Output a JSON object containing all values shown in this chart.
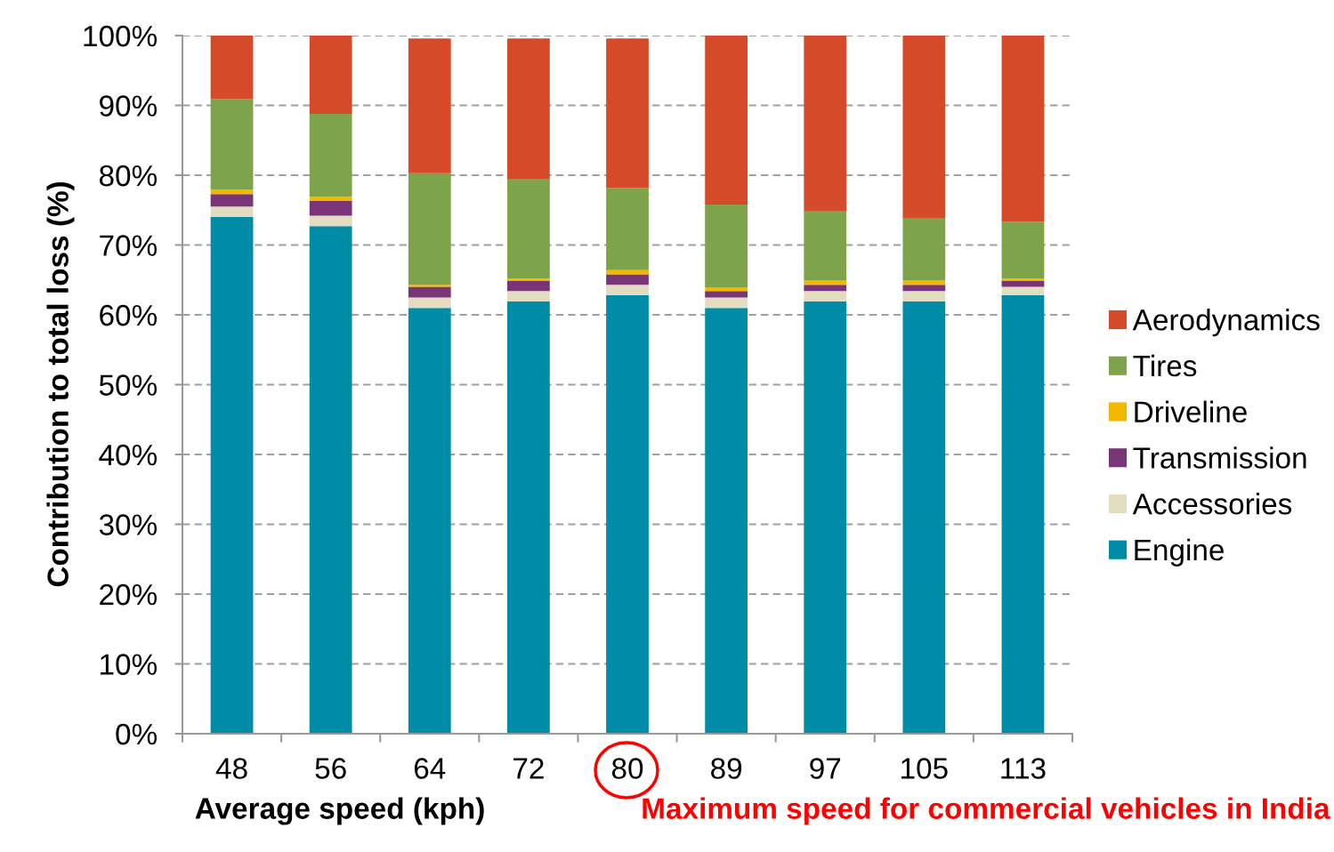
{
  "chart_data": {
    "type": "bar",
    "stacked": true,
    "xlabel": "Average speed (kph)",
    "ylabel": "Contribution to total loss (%)",
    "categories": [
      "48",
      "56",
      "64",
      "72",
      "80",
      "89",
      "97",
      "105",
      "113"
    ],
    "series": [
      {
        "name": "Engine",
        "color": "#008ba6",
        "values": [
          74.0,
          72.7,
          61.0,
          61.9,
          62.8,
          61.0,
          61.9,
          61.9,
          62.8
        ]
      },
      {
        "name": "Accessories",
        "color": "#e2dcc1",
        "values": [
          1.5,
          1.5,
          1.5,
          1.5,
          1.5,
          1.5,
          1.5,
          1.5,
          1.2
        ]
      },
      {
        "name": "Transmission",
        "color": "#7a3578",
        "values": [
          1.8,
          2.1,
          1.5,
          1.5,
          1.5,
          0.9,
          0.9,
          0.9,
          0.9
        ]
      },
      {
        "name": "Driveline",
        "color": "#f5b800",
        "values": [
          0.6,
          0.6,
          0.3,
          0.3,
          0.6,
          0.5,
          0.6,
          0.6,
          0.3
        ]
      },
      {
        "name": "Tires",
        "color": "#7da34b",
        "values": [
          13.0,
          11.9,
          16.0,
          14.2,
          11.8,
          11.9,
          10.0,
          9.0,
          8.1
        ]
      },
      {
        "name": "Aerodynamics",
        "color": "#d54b29",
        "values": [
          9.1,
          11.2,
          19.3,
          20.2,
          21.4,
          24.2,
          25.1,
          26.1,
          26.7
        ]
      }
    ],
    "ylim": [
      0,
      100
    ],
    "yticks": [
      {
        "value": 0,
        "label": "0%"
      },
      {
        "value": 10,
        "label": "10%"
      },
      {
        "value": 20,
        "label": "20%"
      },
      {
        "value": 30,
        "label": "30%"
      },
      {
        "value": 40,
        "label": "40%"
      },
      {
        "value": 50,
        "label": "50%"
      },
      {
        "value": 60,
        "label": "60%"
      },
      {
        "value": 70,
        "label": "70%"
      },
      {
        "value": 80,
        "label": "80%"
      },
      {
        "value": 90,
        "label": "90%"
      },
      {
        "value": 100,
        "label": "100%"
      }
    ],
    "grid": "y",
    "legend": "right",
    "annotations": [
      "Maximum speed for commercial vehicles in India"
    ]
  }
}
